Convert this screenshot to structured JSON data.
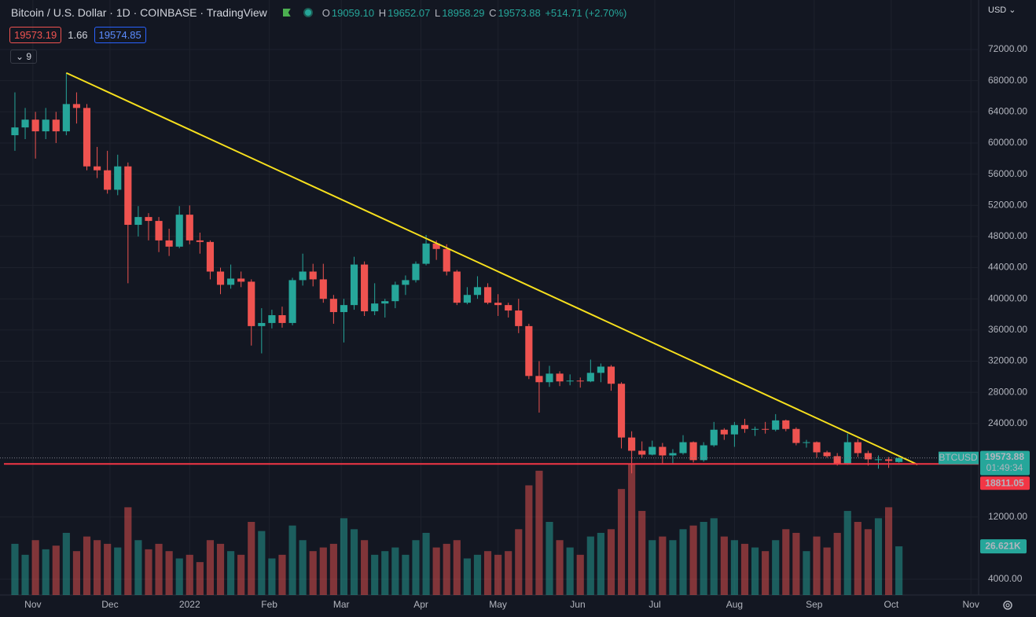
{
  "header": {
    "symbol": "Bitcoin / U.S. Dollar · 1D · COINBASE · TradingView",
    "o_label": "O",
    "open": "19059.10",
    "h_label": "H",
    "high": "19652.07",
    "l_label": "L",
    "low": "18958.29",
    "c_label": "C",
    "close": "19573.88",
    "change": "+514.71 (+2.70%)",
    "bid": "19573.19",
    "spread": "1.66",
    "ask": "19574.85",
    "indicators": "9",
    "currency": "USD"
  },
  "chart_data": {
    "type": "candlestick",
    "open": [
      61000,
      62000,
      63000,
      61500,
      63000,
      61500,
      65000,
      64500,
      57000,
      56500,
      54000,
      57000,
      49500,
      50500,
      50000,
      47500,
      46700,
      50800,
      47500,
      47300,
      43500,
      41800,
      42600,
      42200,
      36500,
      36900,
      37900,
      36900,
      42400,
      43500,
      42500,
      40000,
      38300,
      39200,
      44400,
      38400,
      39400,
      39700,
      41800,
      42400,
      44500,
      47100,
      46400,
      43500,
      39500,
      40500,
      41500,
      39500,
      39200,
      38500,
      36500,
      30100,
      29300,
      30400,
      29400,
      29500,
      29400,
      30500,
      31300,
      29100,
      22200,
      20500,
      20000,
      21000,
      19900,
      20200,
      21600,
      19300,
      21200,
      23200,
      22600,
      23800,
      23300,
      23300,
      23200,
      24400,
      23300,
      21500,
      21600,
      20300,
      19800,
      18800,
      21600,
      20200,
      19400,
      19400,
      19059.1
    ],
    "high": [
      66500,
      64500,
      64000,
      64500,
      64000,
      69000,
      66500,
      65000,
      59500,
      59000,
      58500,
      57500,
      51900,
      51000,
      50500,
      49000,
      51900,
      52000,
      48500,
      47500,
      44000,
      44400,
      43500,
      42500,
      38800,
      38600,
      39000,
      42700,
      45800,
      44500,
      44500,
      40500,
      40000,
      45400,
      44800,
      42000,
      40000,
      42200,
      43000,
      44800,
      48200,
      47500,
      47000,
      43700,
      41500,
      42900,
      42000,
      40600,
      39500,
      40000,
      36800,
      32000,
      31400,
      30700,
      30300,
      29900,
      32200,
      31700,
      31500,
      29300,
      23000,
      21700,
      21800,
      21500,
      20700,
      22500,
      21700,
      21600,
      24200,
      23400,
      24200,
      24600,
      23600,
      24200,
      25200,
      24500,
      23500,
      21900,
      21700,
      20500,
      20200,
      22700,
      22000,
      20500,
      19900,
      19700,
      19652.07
    ],
    "low": [
      59000,
      60500,
      58000,
      60500,
      60000,
      61000,
      62500,
      56500,
      55500,
      53500,
      53300,
      42000,
      48000,
      47500,
      46000,
      45500,
      46500,
      47000,
      45800,
      42500,
      40600,
      41300,
      41500,
      34000,
      33000,
      36200,
      36300,
      36600,
      41700,
      41600,
      39500,
      36800,
      34400,
      38600,
      37800,
      37900,
      37600,
      38800,
      40500,
      42100,
      44300,
      45000,
      43000,
      39200,
      39300,
      40000,
      39300,
      37800,
      37600,
      35600,
      29700,
      25400,
      28700,
      28800,
      28900,
      28600,
      29300,
      29300,
      28200,
      20800,
      17600,
      19600,
      19900,
      18800,
      18900,
      20000,
      19000,
      19100,
      21000,
      21900,
      21000,
      22800,
      22400,
      22700,
      23000,
      23000,
      21200,
      20900,
      19600,
      19600,
      18600,
      18700,
      19700,
      18600,
      18200,
      18300,
      18958.29
    ],
    "close": [
      62000,
      63000,
      61500,
      63000,
      61500,
      65000,
      64500,
      57000,
      56500,
      54000,
      57000,
      49500,
      50500,
      50000,
      47500,
      46700,
      50800,
      47500,
      47300,
      43500,
      41800,
      42600,
      42200,
      36500,
      36900,
      37900,
      36900,
      42400,
      43500,
      42500,
      40000,
      38300,
      39200,
      44400,
      38400,
      39400,
      39700,
      41800,
      42400,
      44500,
      47100,
      46400,
      43500,
      39500,
      40500,
      41500,
      39500,
      39200,
      38500,
      36500,
      30100,
      29300,
      30400,
      29400,
      29500,
      29400,
      30500,
      31300,
      29100,
      22200,
      20500,
      20000,
      21000,
      19900,
      20200,
      21600,
      19300,
      21200,
      23200,
      22600,
      23800,
      23300,
      23300,
      23200,
      24400,
      23300,
      21500,
      21600,
      20300,
      19800,
      18800,
      21600,
      20200,
      19400,
      19400,
      19200,
      19573.88
    ],
    "volume": [
      28000,
      22000,
      30000,
      25000,
      27000,
      34000,
      24000,
      32000,
      30000,
      28000,
      26000,
      48000,
      30000,
      25000,
      28000,
      24000,
      20000,
      22000,
      18000,
      30000,
      28000,
      24000,
      22000,
      40000,
      35000,
      20000,
      22000,
      38000,
      30000,
      24000,
      26000,
      28000,
      42000,
      36000,
      30000,
      22000,
      24000,
      26000,
      22000,
      30000,
      34000,
      26000,
      28000,
      30000,
      20000,
      22000,
      24000,
      22000,
      24000,
      36000,
      60000,
      68000,
      40000,
      30000,
      26000,
      22000,
      32000,
      34000,
      36000,
      58000,
      72000,
      46000,
      30000,
      32000,
      30000,
      36000,
      38000,
      40000,
      42000,
      32000,
      30000,
      28000,
      26000,
      24000,
      30000,
      36000,
      34000,
      24000,
      32000,
      26000,
      34000,
      46000,
      40000,
      36000,
      42000,
      48000,
      26621
    ],
    "up_color": "#26a69a",
    "down_color": "#ef5350",
    "xlim": [
      -1.45,
      93.75
    ],
    "xticks": [
      {
        "value": 1.75,
        "label": "Nov"
      },
      {
        "value": 9.25,
        "label": "Dec"
      },
      {
        "value": 17,
        "label": "2022"
      },
      {
        "value": 24.75,
        "label": "Feb"
      },
      {
        "value": 31.75,
        "label": "Mar"
      },
      {
        "value": 39.5,
        "label": "Apr"
      },
      {
        "value": 47,
        "label": "May"
      },
      {
        "value": 54.75,
        "label": "Jun"
      },
      {
        "value": 62.25,
        "label": "Jul"
      },
      {
        "value": 70,
        "label": "Aug"
      },
      {
        "value": 77.75,
        "label": "Sep"
      },
      {
        "value": 85.25,
        "label": "Oct"
      },
      {
        "value": 93,
        "label": "Nov"
      }
    ],
    "ylim": [
      1987,
      78356
    ],
    "yticks": [
      {
        "value": 72000,
        "label": "72000.00"
      },
      {
        "value": 68000,
        "label": "68000.00"
      },
      {
        "value": 64000,
        "label": "64000.00"
      },
      {
        "value": 60000,
        "label": "60000.00"
      },
      {
        "value": 56000,
        "label": "56000.00"
      },
      {
        "value": 52000,
        "label": "52000.00"
      },
      {
        "value": 48000,
        "label": "48000.00"
      },
      {
        "value": 44000,
        "label": "44000.00"
      },
      {
        "value": 40000,
        "label": "40000.00"
      },
      {
        "value": 36000,
        "label": "36000.00"
      },
      {
        "value": 32000,
        "label": "32000.00"
      },
      {
        "value": 28000,
        "label": "28000.00"
      },
      {
        "value": 24000,
        "label": "24000.00"
      },
      {
        "value": 12000,
        "label": "12000.00"
      },
      {
        "value": 4000,
        "label": "4000.00"
      }
    ],
    "grid": true,
    "volume_lim": [
      0,
      80000
    ],
    "last_volume_label": "26.621K",
    "trendline": {
      "x": [
        5,
        87.8
      ],
      "y": [
        69000,
        18734
      ],
      "color": "#f7e01d"
    },
    "support_line": {
      "value": 18811.05,
      "color": "#f23645"
    },
    "last_price": {
      "symbol": "BTCUSD",
      "value": 19573.88,
      "countdown": "01:49:34"
    }
  }
}
